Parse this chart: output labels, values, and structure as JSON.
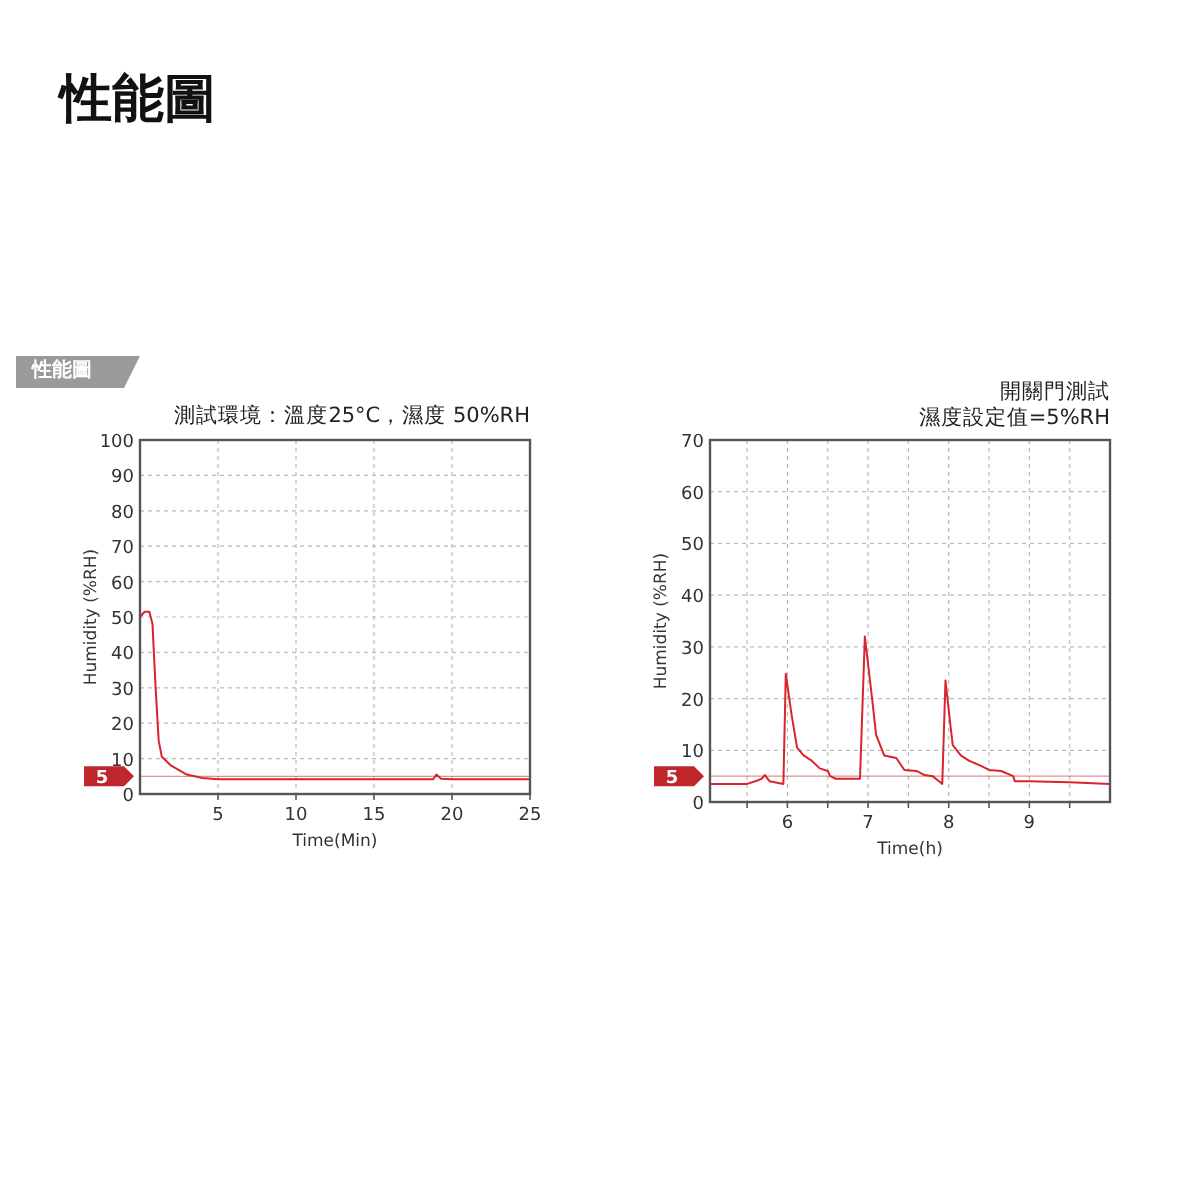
{
  "chart_data": [
    {
      "type": "line",
      "title": "測試環境：溫度25°C，濕度 50%RH",
      "xlabel": "Time(Min)",
      "ylabel": "Humidity (%RH)",
      "annotations": [
        "性能圖",
        "性能圖"
      ],
      "x": [
        0,
        0.3,
        0.6,
        0.8,
        1,
        1.2,
        1.4,
        2,
        3,
        4,
        5,
        10,
        15,
        18.8,
        19,
        19.3,
        20,
        25
      ],
      "series": [
        {
          "color": "#d9232d",
          "values": [
            50,
            51.5,
            51.5,
            48,
            30,
            15,
            10.5,
            8,
            5.5,
            4.5,
            4.2,
            4.2,
            4.2,
            4.2,
            5.5,
            4.3,
            4.2,
            4.2
          ]
        }
      ],
      "xlim": [
        0,
        25
      ],
      "ylim": [
        0,
        100
      ],
      "xticks": [
        5,
        10,
        15,
        20,
        25
      ],
      "yticks": [
        0,
        10,
        20,
        30,
        40,
        50,
        60,
        70,
        80,
        90,
        100
      ],
      "grid": true,
      "ref_lines": [
        {
          "axis": "y",
          "value": 5,
          "label": "5",
          "color": "#c0272d"
        }
      ]
    },
    {
      "type": "line",
      "title": "開關門測試",
      "subtitle": "濕度設定值=5%RH",
      "xlabel": "Time(h)",
      "ylabel": "Humidity (%RH)",
      "x": [
        5.04,
        5.5,
        5.6,
        5.68,
        5.72,
        5.78,
        5.95,
        5.98,
        6.05,
        6.12,
        6.2,
        6.3,
        6.4,
        6.5,
        6.53,
        6.6,
        6.8,
        6.9,
        6.96,
        7.05,
        7.1,
        7.2,
        7.35,
        7.45,
        7.6,
        7.7,
        7.8,
        7.88,
        7.92,
        7.96,
        8.02,
        8.05,
        8.15,
        8.25,
        8.4,
        8.5,
        8.65,
        8.8,
        8.82,
        9,
        9.5,
        10
      ],
      "series": [
        {
          "color": "#d9232d",
          "values": [
            3.5,
            3.5,
            4,
            4.5,
            5.2,
            4,
            3.5,
            24.8,
            17,
            10.5,
            9,
            8,
            6.5,
            6,
            5,
            4.5,
            4.5,
            4.5,
            32,
            20,
            13,
            9,
            8.5,
            6.2,
            6,
            5.2,
            5,
            4,
            3.5,
            23.5,
            15,
            11,
            9,
            8,
            7,
            6.2,
            6,
            5,
            4,
            4,
            3.8,
            3.5
          ]
        }
      ],
      "xlim": [
        5.04,
        10
      ],
      "ylim": [
        0,
        70
      ],
      "xticks": [
        {
          "value": 5.5,
          "label": null
        },
        6,
        {
          "value": 6.5,
          "label": null
        },
        7,
        {
          "value": 7.5,
          "label": null
        },
        8,
        {
          "value": 8.5,
          "label": null
        },
        9,
        {
          "value": 9.5,
          "label": null
        }
      ],
      "yticks": [
        0,
        10,
        20,
        30,
        40,
        50,
        60,
        70
      ],
      "grid": true,
      "ref_lines": [
        {
          "axis": "y",
          "value": 5,
          "label": "5",
          "color": "#c0272d"
        }
      ]
    }
  ]
}
